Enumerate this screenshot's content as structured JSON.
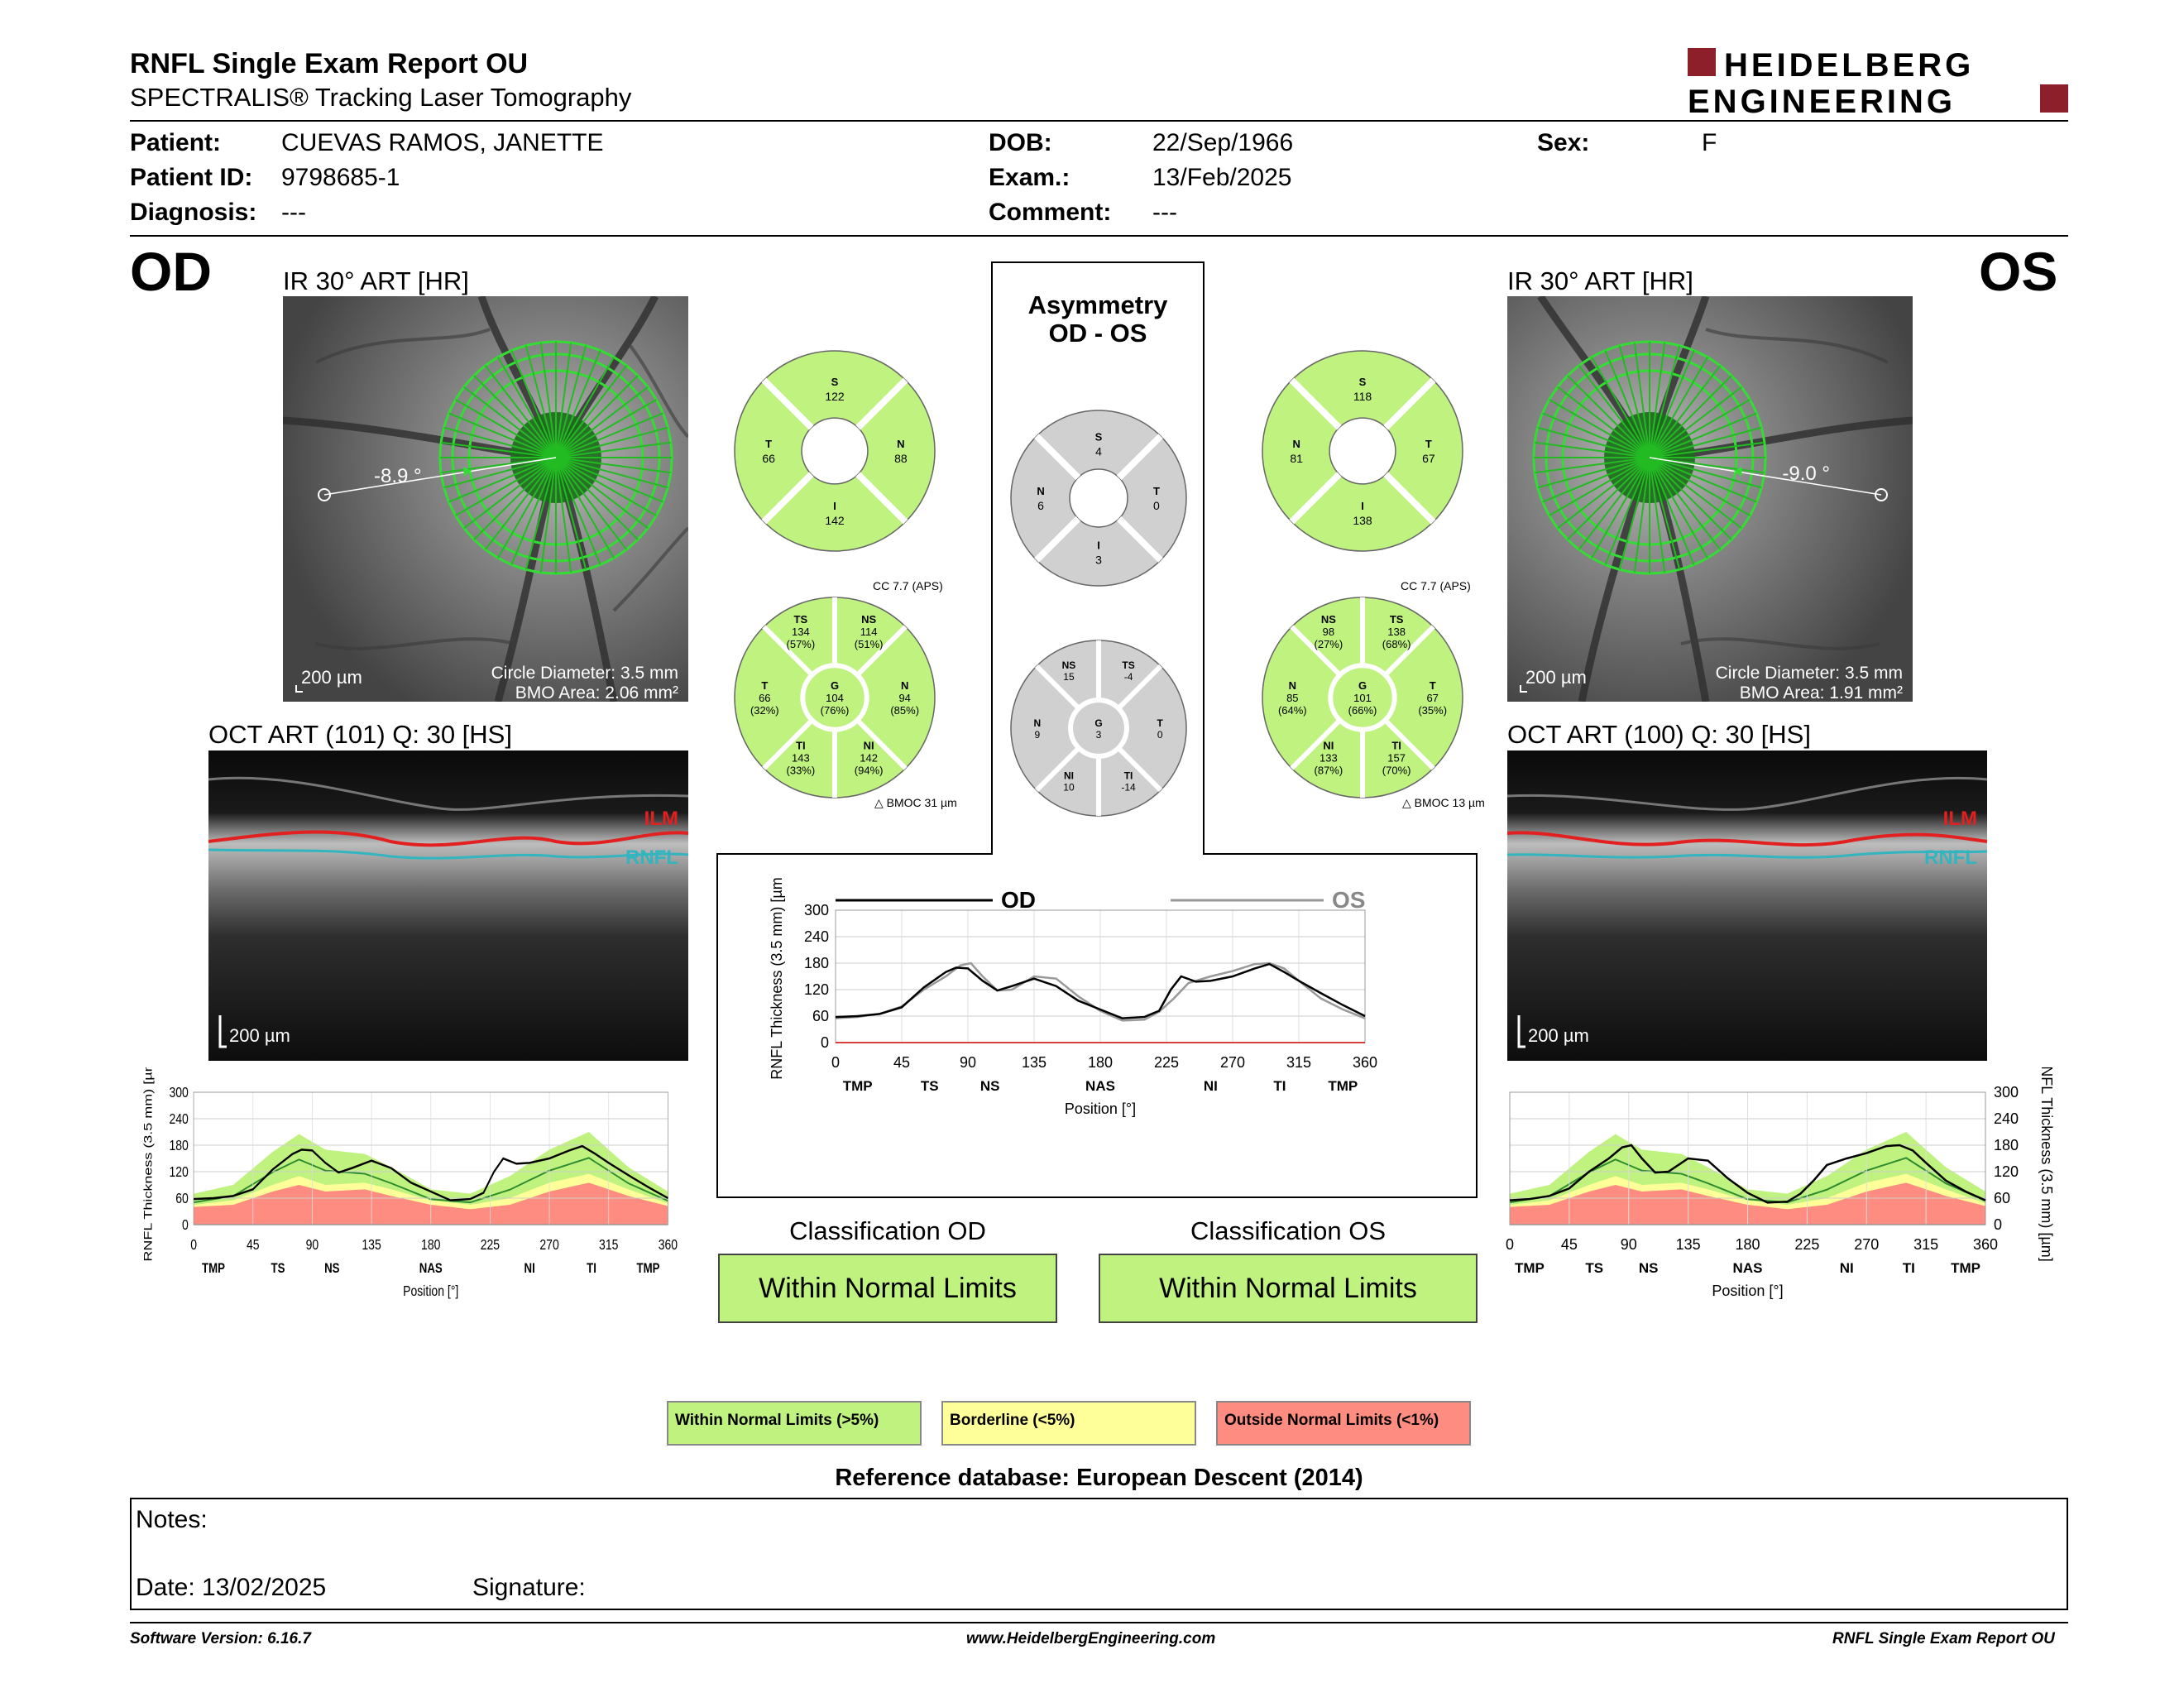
{
  "header": {
    "title": "RNFL Single Exam Report OU",
    "subtitle": "SPECTRALIS® Tracking Laser Tomography",
    "logo_line1": "HEIDELBERG",
    "logo_line2": "ENGINEERING"
  },
  "patient": {
    "patient_label": "Patient:",
    "patient_value": "CUEVAS RAMOS, JANETTE",
    "id_label": "Patient ID:",
    "id_value": "9798685-1",
    "diagnosis_label": "Diagnosis:",
    "diagnosis_value": "---",
    "dob_label": "DOB:",
    "dob_value": "22/Sep/1966",
    "exam_label": "Exam.:",
    "exam_value": "13/Feb/2025",
    "comment_label": "Comment:",
    "comment_value": "---",
    "sex_label": "Sex:",
    "sex_value": "F"
  },
  "od": {
    "eye": "OD",
    "ir_label": "IR 30° ART [HR]",
    "angle": "-8.9 °",
    "scale": "200 µm",
    "circle_diameter": "Circle Diameter: 3.5 mm",
    "bmo_area": "BMO Area: 2.06 mm²",
    "oct_label": "OCT ART (101) Q: 30 [HS]",
    "oct_scale": "200 µm",
    "ilm": "ILM",
    "rnfl": "RNFL",
    "sectors4": {
      "S": "122",
      "T": "66",
      "N": "88",
      "I": "142"
    },
    "cc": "CC 7.7 (APS)",
    "bmoc": "BMOC 31 µm",
    "sectors6": {
      "TS": [
        "TS",
        "134",
        "(57%)"
      ],
      "NS": [
        "NS",
        "114",
        "(51%)"
      ],
      "T": [
        "T",
        "66",
        "(32%)"
      ],
      "G": [
        "G",
        "104",
        "(76%)"
      ],
      "N": [
        "N",
        "94",
        "(85%)"
      ],
      "TI": [
        "TI",
        "143",
        "(33%)"
      ],
      "NI": [
        "NI",
        "142",
        "(94%)"
      ]
    },
    "classification_title": "Classification OD",
    "classification": "Within Normal Limits"
  },
  "os": {
    "eye": "OS",
    "ir_label": "IR 30° ART [HR]",
    "angle": "-9.0 °",
    "scale": "200 µm",
    "circle_diameter": "Circle Diameter: 3.5 mm",
    "bmo_area": "BMO Area: 1.91 mm²",
    "oct_label": "OCT ART (100) Q: 30 [HS]",
    "oct_scale": "200 µm",
    "ilm": "ILM",
    "rnfl": "RNFL",
    "sectors4": {
      "S": "118",
      "N": "81",
      "T": "67",
      "I": "138"
    },
    "cc": "CC 7.7 (APS)",
    "bmoc": "BMOC 13 µm",
    "sectors6": {
      "NS": [
        "NS",
        "98",
        "(27%)"
      ],
      "TS": [
        "TS",
        "138",
        "(68%)"
      ],
      "N": [
        "N",
        "85",
        "(64%)"
      ],
      "G": [
        "G",
        "101",
        "(66%)"
      ],
      "T": [
        "T",
        "67",
        "(35%)"
      ],
      "NI": [
        "NI",
        "133",
        "(87%)"
      ],
      "TI": [
        "TI",
        "157",
        "(70%)"
      ]
    },
    "classification_title": "Classification OS",
    "classification": "Within Normal Limits"
  },
  "asymmetry": {
    "title1": "Asymmetry",
    "title2": "OD - OS",
    "sectors4": {
      "S": "4",
      "N": "6",
      "T": "0",
      "I": "3"
    },
    "sectors6": {
      "NS": [
        "NS",
        "15"
      ],
      "TS": [
        "TS",
        "-4"
      ],
      "N": [
        "N",
        "9"
      ],
      "G": [
        "G",
        "3"
      ],
      "T": [
        "T",
        "0"
      ],
      "NI": [
        "NI",
        "10"
      ],
      "TI": [
        "TI",
        "-14"
      ]
    },
    "legend_od": "OD",
    "legend_os": "OS"
  },
  "chart_common": {
    "ylabel": "RNFL Thickness (3.5 mm) [µm]",
    "xlabel": "Position [°]",
    "xticks": [
      "0",
      "45",
      "90",
      "135",
      "180",
      "225",
      "270",
      "315",
      "360"
    ],
    "yticks": [
      "0",
      "60",
      "120",
      "180",
      "240",
      "300"
    ],
    "sector_labels": [
      "TMP",
      "TS",
      "NS",
      "NAS",
      "NI",
      "TI",
      "TMP"
    ]
  },
  "chart_data": [
    {
      "type": "line",
      "title": "",
      "xlabel": "Position [°]",
      "ylabel": "RNFL Thickness (3.5 mm) [µm]",
      "xlim": [
        0,
        360
      ],
      "ylim": [
        0,
        300
      ],
      "series": [
        {
          "name": "OD",
          "x": [
            0,
            15,
            30,
            45,
            60,
            75,
            82,
            90,
            100,
            110,
            120,
            135,
            150,
            165,
            180,
            195,
            210,
            220,
            228,
            235,
            245,
            255,
            270,
            285,
            295,
            305,
            315,
            330,
            345,
            360
          ],
          "values": [
            58,
            60,
            65,
            80,
            125,
            160,
            170,
            168,
            140,
            118,
            128,
            145,
            128,
            95,
            75,
            55,
            58,
            72,
            120,
            150,
            138,
            140,
            150,
            168,
            178,
            160,
            140,
            112,
            85,
            60
          ]
        },
        {
          "name": "OS",
          "x": [
            0,
            15,
            30,
            45,
            60,
            75,
            85,
            92,
            100,
            110,
            120,
            135,
            150,
            165,
            180,
            195,
            210,
            220,
            230,
            240,
            255,
            270,
            285,
            295,
            305,
            315,
            330,
            345,
            360
          ],
          "values": [
            55,
            58,
            65,
            82,
            120,
            150,
            175,
            180,
            150,
            118,
            120,
            150,
            145,
            105,
            72,
            50,
            52,
            70,
            100,
            135,
            150,
            162,
            178,
            180,
            168,
            140,
            100,
            75,
            55
          ]
        }
      ]
    },
    {
      "type": "area",
      "title": "",
      "xlabel": "Position [°]",
      "ylabel": "RNFL Thickness (3.5 mm) [µm]",
      "xlim": [
        0,
        360
      ],
      "ylim": [
        0,
        300
      ],
      "series": [
        {
          "name": "",
          "x": [
            0,
            15,
            30,
            45,
            60,
            75,
            82,
            90,
            100,
            110,
            120,
            135,
            150,
            165,
            180,
            195,
            210,
            220,
            228,
            235,
            245,
            255,
            270,
            285,
            295,
            305,
            315,
            330,
            345,
            360
          ],
          "values": [
            58,
            60,
            65,
            80,
            125,
            160,
            170,
            168,
            140,
            118,
            128,
            145,
            128,
            95,
            75,
            55,
            58,
            72,
            120,
            150,
            138,
            140,
            150,
            168,
            178,
            160,
            140,
            112,
            85,
            60
          ]
        }
      ]
    },
    {
      "type": "area",
      "title": "",
      "xlabel": "Position [°]",
      "ylabel": "RNFL Thickness (3.5 mm) [µm]",
      "xlim": [
        0,
        360
      ],
      "ylim": [
        0,
        300
      ],
      "series": [
        {
          "name": "",
          "x": [
            0,
            15,
            30,
            45,
            60,
            75,
            85,
            92,
            100,
            110,
            120,
            135,
            150,
            165,
            180,
            195,
            210,
            220,
            230,
            240,
            255,
            270,
            285,
            295,
            305,
            315,
            330,
            345,
            360
          ],
          "values": [
            55,
            58,
            65,
            82,
            120,
            150,
            175,
            180,
            150,
            118,
            120,
            150,
            145,
            105,
            72,
            50,
            52,
            70,
            100,
            135,
            150,
            162,
            178,
            180,
            168,
            140,
            100,
            75,
            55
          ]
        }
      ]
    }
  ],
  "legend": {
    "wnl": "Within Normal Limits (>5%)",
    "bl": "Borderline (<5%)",
    "onl": "Outside Normal Limits (<1%)",
    "colors": {
      "wnl": "#bff27f",
      "bl": "#ffff9a",
      "onl": "#ff8c80"
    }
  },
  "reference_db": "Reference database: European Descent (2014)",
  "notes": {
    "notes_label": "Notes:",
    "date_label": "Date: 13/02/2025",
    "signature_label": "Signature:"
  },
  "footer": {
    "software": "Software Version: 6.16.7",
    "website": "www.HeidelbergEngineering.com",
    "report": "RNFL Single Exam Report OU"
  }
}
